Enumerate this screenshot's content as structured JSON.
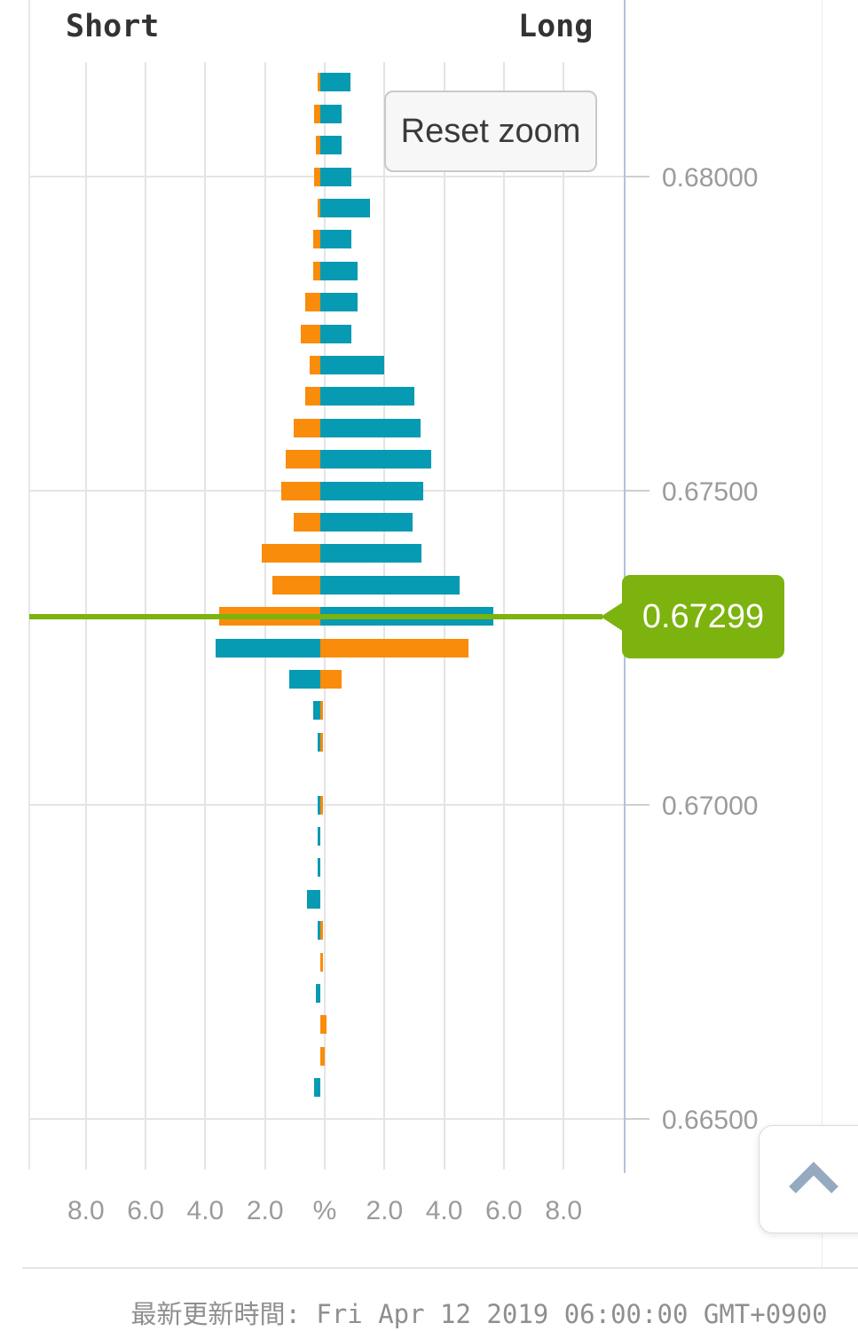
{
  "labels": {
    "short": "Short",
    "long": "Long"
  },
  "buttons": {
    "reset_zoom": "Reset zoom"
  },
  "price_flag": {
    "value": "0.67299"
  },
  "footer": {
    "updated_text": "最新更新時間: Fri Apr 12 2019 06:00:00 GMT+0900"
  },
  "icons": {
    "scroll_top": "chevron-up-icon"
  },
  "chart_data": {
    "type": "bar",
    "orientation": "horizontal-pyramid",
    "title": "",
    "xlabel": "%",
    "ylabel": "price",
    "grid": true,
    "legend_position": "none",
    "sides": {
      "left": "Short",
      "right": "Long"
    },
    "current_price": 0.67299,
    "current_price_label": "0.67299",
    "colors": {
      "teal": "#069ab3",
      "orange": "#f98c0b",
      "price_line": "#7cb30e",
      "grid": "#e4e4e4",
      "axis_text": "#9b9b9b",
      "plot_right_border": "#b3c1dd"
    },
    "x_axis": {
      "range_pct": [
        -10,
        10
      ],
      "ticks": [
        {
          "value": -8,
          "label": "8.0"
        },
        {
          "value": -6,
          "label": "6.0"
        },
        {
          "value": -4,
          "label": "4.0"
        },
        {
          "value": -2,
          "label": "2.0"
        },
        {
          "value": 0,
          "label": "%"
        },
        {
          "value": 2,
          "label": "2.0"
        },
        {
          "value": 4,
          "label": "4.0"
        },
        {
          "value": 6,
          "label": "6.0"
        },
        {
          "value": 8,
          "label": "8.0"
        }
      ]
    },
    "y_axis": {
      "range": [
        0.6648,
        0.6822
      ],
      "bucket_size": 0.0005,
      "ticks": [
        {
          "value": 0.68,
          "label": "0.68000"
        },
        {
          "value": 0.675,
          "label": "0.67500"
        },
        {
          "value": 0.67,
          "label": "0.67000"
        },
        {
          "value": 0.665,
          "label": "0.66500"
        }
      ]
    },
    "rows": [
      {
        "price": 0.6815,
        "left_pct": 0.1,
        "left_color": "orange",
        "right_pct": 1.0,
        "right_color": "teal"
      },
      {
        "price": 0.681,
        "left_pct": 0.2,
        "left_color": "orange",
        "right_pct": 0.7,
        "right_color": "teal"
      },
      {
        "price": 0.6805,
        "left_pct": 0.15,
        "left_color": "orange",
        "right_pct": 0.7,
        "right_color": "teal"
      },
      {
        "price": 0.68,
        "left_pct": 0.2,
        "left_color": "orange",
        "right_pct": 1.05,
        "right_color": "teal"
      },
      {
        "price": 0.6795,
        "left_pct": 0.1,
        "left_color": "orange",
        "right_pct": 1.65,
        "right_color": "teal"
      },
      {
        "price": 0.679,
        "left_pct": 0.25,
        "left_color": "orange",
        "right_pct": 1.05,
        "right_color": "teal"
      },
      {
        "price": 0.6785,
        "left_pct": 0.25,
        "left_color": "orange",
        "right_pct": 1.25,
        "right_color": "teal"
      },
      {
        "price": 0.678,
        "left_pct": 0.5,
        "left_color": "orange",
        "right_pct": 1.25,
        "right_color": "teal"
      },
      {
        "price": 0.6775,
        "left_pct": 0.65,
        "left_color": "orange",
        "right_pct": 1.05,
        "right_color": "teal"
      },
      {
        "price": 0.677,
        "left_pct": 0.35,
        "left_color": "orange",
        "right_pct": 2.15,
        "right_color": "teal"
      },
      {
        "price": 0.6765,
        "left_pct": 0.5,
        "left_color": "orange",
        "right_pct": 3.15,
        "right_color": "teal"
      },
      {
        "price": 0.676,
        "left_pct": 0.9,
        "left_color": "orange",
        "right_pct": 3.35,
        "right_color": "teal"
      },
      {
        "price": 0.6755,
        "left_pct": 1.15,
        "left_color": "orange",
        "right_pct": 3.7,
        "right_color": "teal"
      },
      {
        "price": 0.675,
        "left_pct": 1.3,
        "left_color": "orange",
        "right_pct": 3.45,
        "right_color": "teal"
      },
      {
        "price": 0.6745,
        "left_pct": 0.9,
        "left_color": "orange",
        "right_pct": 3.1,
        "right_color": "teal"
      },
      {
        "price": 0.674,
        "left_pct": 1.95,
        "left_color": "orange",
        "right_pct": 3.4,
        "right_color": "teal"
      },
      {
        "price": 0.6735,
        "left_pct": 1.6,
        "left_color": "orange",
        "right_pct": 4.65,
        "right_color": "teal"
      },
      {
        "price": 0.673,
        "left_pct": 3.4,
        "left_color": "orange",
        "right_pct": 5.8,
        "right_color": "teal"
      },
      {
        "price": 0.6725,
        "left_pct": 3.5,
        "left_color": "teal",
        "right_pct": 4.95,
        "right_color": "orange"
      },
      {
        "price": 0.672,
        "left_pct": 1.05,
        "left_color": "teal",
        "right_pct": 0.7,
        "right_color": "orange"
      },
      {
        "price": 0.6715,
        "left_pct": 0.25,
        "left_color": "teal",
        "right_pct": 0.1,
        "right_color": "orange"
      },
      {
        "price": 0.671,
        "left_pct": 0.1,
        "left_color": "teal",
        "right_pct": 0.1,
        "right_color": "orange"
      },
      {
        "price": 0.67,
        "left_pct": 0.1,
        "left_color": "teal",
        "right_pct": 0.1,
        "right_color": "orange"
      },
      {
        "price": 0.6695,
        "left_pct": 0.1,
        "left_color": "teal",
        "right_pct": 0,
        "right_color": "orange"
      },
      {
        "price": 0.669,
        "left_pct": 0.1,
        "left_color": "teal",
        "right_pct": 0,
        "right_color": "orange"
      },
      {
        "price": 0.6685,
        "left_pct": 0.45,
        "left_color": "teal",
        "right_pct": 0,
        "right_color": "orange"
      },
      {
        "price": 0.668,
        "left_pct": 0.1,
        "left_color": "teal",
        "right_pct": 0.1,
        "right_color": "orange"
      },
      {
        "price": 0.6675,
        "left_pct": 0,
        "left_color": "teal",
        "right_pct": 0.1,
        "right_color": "orange"
      },
      {
        "price": 0.667,
        "left_pct": 0.15,
        "left_color": "teal",
        "right_pct": 0,
        "right_color": "orange"
      },
      {
        "price": 0.6665,
        "left_pct": 0,
        "left_color": "teal",
        "right_pct": 0.2,
        "right_color": "orange"
      },
      {
        "price": 0.666,
        "left_pct": 0,
        "left_color": "teal",
        "right_pct": 0.15,
        "right_color": "orange"
      },
      {
        "price": 0.6655,
        "left_pct": 0.2,
        "left_color": "teal",
        "right_pct": 0,
        "right_color": "orange"
      }
    ]
  }
}
